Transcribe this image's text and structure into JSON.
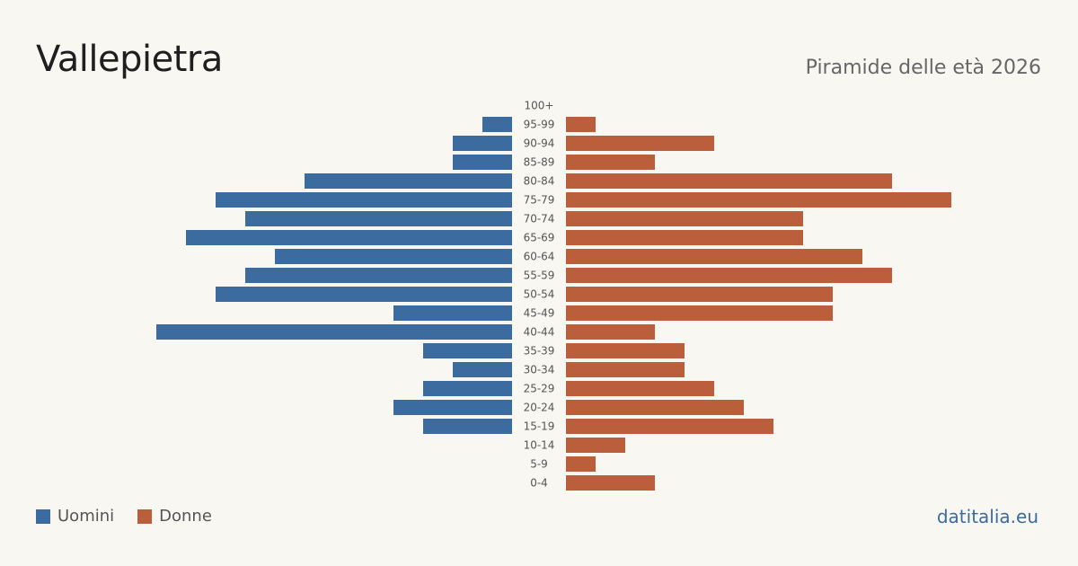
{
  "title": "Vallepietra",
  "subtitle": "Piramide delle età 2026",
  "source": "datitalia.eu",
  "colors": {
    "men": "#3b6b9f",
    "women": "#ba5e3c"
  },
  "chart_data": {
    "type": "bar",
    "orientation": "horizontal-pyramid",
    "categories": [
      "100+",
      "95-99",
      "90-94",
      "85-89",
      "80-84",
      "75-79",
      "70-74",
      "65-69",
      "60-64",
      "55-59",
      "50-54",
      "45-49",
      "40-44",
      "35-39",
      "30-34",
      "25-29",
      "20-24",
      "15-19",
      "10-14",
      "5-9",
      "0-4"
    ],
    "series": [
      {
        "name": "Uomini",
        "values": [
          0,
          1,
          2,
          2,
          7,
          10,
          9,
          11,
          8,
          9,
          10,
          4,
          12,
          3,
          2,
          3,
          4,
          3,
          0,
          0,
          0
        ]
      },
      {
        "name": "Donne",
        "values": [
          0,
          1,
          5,
          3,
          11,
          13,
          8,
          8,
          10,
          11,
          9,
          9,
          3,
          4,
          4,
          5,
          6,
          7,
          2,
          1,
          3
        ]
      }
    ]
  }
}
